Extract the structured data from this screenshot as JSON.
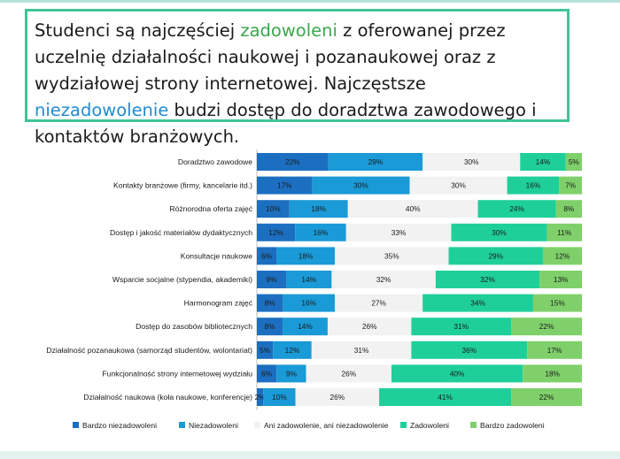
{
  "headline": {
    "part1": "Studenci są najczęściej ",
    "highlight1": "zadowoleni",
    "part2": " z oferowanej przez uczelnię działalności naukowej i pozanaukowej oraz z wydziałowej strony internetowej. Najczęstsze ",
    "highlight2": "niezadowolenie",
    "part3": " budzi dostęp do doradztwa zawodowego i kontaktów branżowych."
  },
  "colors": {
    "headline_border": "#3fc49a",
    "highlight_green": "#3aa64b",
    "highlight_blue": "#1f8ccf"
  },
  "chart_data": {
    "type": "bar",
    "orientation": "horizontal",
    "stacked": true,
    "normalized": true,
    "categories": [
      "Doradztwo zawodowe",
      "Kontakty branżowe (firmy, kancelarie itd.)",
      "Różnorodna oferta zajęć",
      "Dostęp i jakość materiałów dydaktycznych",
      "Konsultacje naukowe",
      "Wsparcie socjalne (stypendia, akademiki)",
      "Harmonogram zajęć",
      "Dostęp do zasobów bibliotecznych",
      "Działalność pozanaukowa (samorząd studentów, wolontariat)",
      "Funkcjonalność strony internetowej wydziału",
      "Działalność naukowa (koła naukowe, konferencje)"
    ],
    "series": [
      {
        "name": "Bardzo niezadowoleni",
        "color": "#1c6fc0",
        "values": [
          22,
          17,
          10,
          12,
          6,
          9,
          8,
          8,
          5,
          6,
          2
        ]
      },
      {
        "name": "Niezadowoleni",
        "color": "#1a9ad6",
        "values": [
          29,
          30,
          18,
          16,
          18,
          14,
          16,
          14,
          12,
          9,
          10
        ]
      },
      {
        "name": "Ani zadowolenie, ani niezadowolenie",
        "color": "#f2f2f2",
        "values": [
          30,
          30,
          40,
          33,
          35,
          32,
          27,
          26,
          31,
          26,
          26
        ]
      },
      {
        "name": "Zadowoleni",
        "color": "#1fcf9a",
        "values": [
          14,
          16,
          24,
          30,
          29,
          32,
          34,
          31,
          36,
          40,
          41
        ]
      },
      {
        "name": "Bardzo zadowoleni",
        "color": "#7fd06a",
        "values": [
          5,
          7,
          8,
          11,
          12,
          13,
          15,
          22,
          17,
          18,
          22
        ]
      }
    ],
    "value_suffix": "%",
    "title": "",
    "xlabel": "",
    "ylabel": "",
    "grid": false,
    "legend": "bottom"
  }
}
